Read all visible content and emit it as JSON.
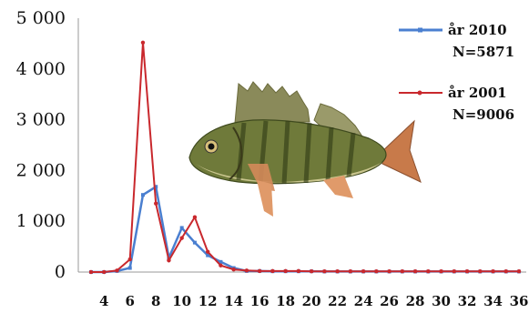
{
  "chart_data": {
    "type": "line",
    "title": "",
    "xlabel": "",
    "ylabel": "",
    "x": [
      3,
      4,
      5,
      6,
      7,
      8,
      9,
      10,
      11,
      12,
      13,
      14,
      15,
      16,
      17,
      18,
      19,
      20,
      21,
      22,
      23,
      24,
      25,
      26,
      27,
      28,
      29,
      30,
      31,
      32,
      33,
      34,
      35,
      36
    ],
    "xlim": [
      3,
      36
    ],
    "x_tick_labels": [
      "4",
      "6",
      "8",
      "10",
      "12",
      "14",
      "16",
      "18",
      "20",
      "22",
      "24",
      "26",
      "28",
      "30",
      "32",
      "34",
      "36"
    ],
    "x_tick_values": [
      4,
      6,
      8,
      10,
      12,
      14,
      16,
      18,
      20,
      22,
      24,
      26,
      28,
      30,
      32,
      34,
      36
    ],
    "ylim": [
      0,
      5000
    ],
    "y_tick_values": [
      0,
      1000,
      2000,
      3000,
      4000,
      5000
    ],
    "y_tick_labels": [
      "0",
      "1 000",
      "2 000",
      "3 000",
      "4 000",
      "5 000"
    ],
    "grid": false,
    "legend_position": "top-right",
    "series": [
      {
        "name": "år 2010",
        "legend_sublabel": "N=5871",
        "color": "#4a7fd0",
        "values": [
          0,
          0,
          20,
          80,
          1520,
          1680,
          280,
          870,
          580,
          330,
          200,
          80,
          20,
          20,
          15,
          15,
          15,
          15,
          10,
          10,
          10,
          10,
          10,
          10,
          10,
          10,
          10,
          10,
          10,
          10,
          10,
          10,
          10,
          10
        ]
      },
      {
        "name": "år 2001",
        "legend_sublabel": "N=9006",
        "color": "#c9282d",
        "values": [
          0,
          0,
          30,
          250,
          4520,
          1350,
          230,
          670,
          1080,
          400,
          130,
          50,
          30,
          20,
          20,
          20,
          20,
          15,
          15,
          15,
          15,
          15,
          15,
          15,
          15,
          15,
          15,
          15,
          15,
          15,
          15,
          15,
          15,
          15
        ]
      }
    ],
    "image_description_icon": "perch-fish-illustration"
  }
}
